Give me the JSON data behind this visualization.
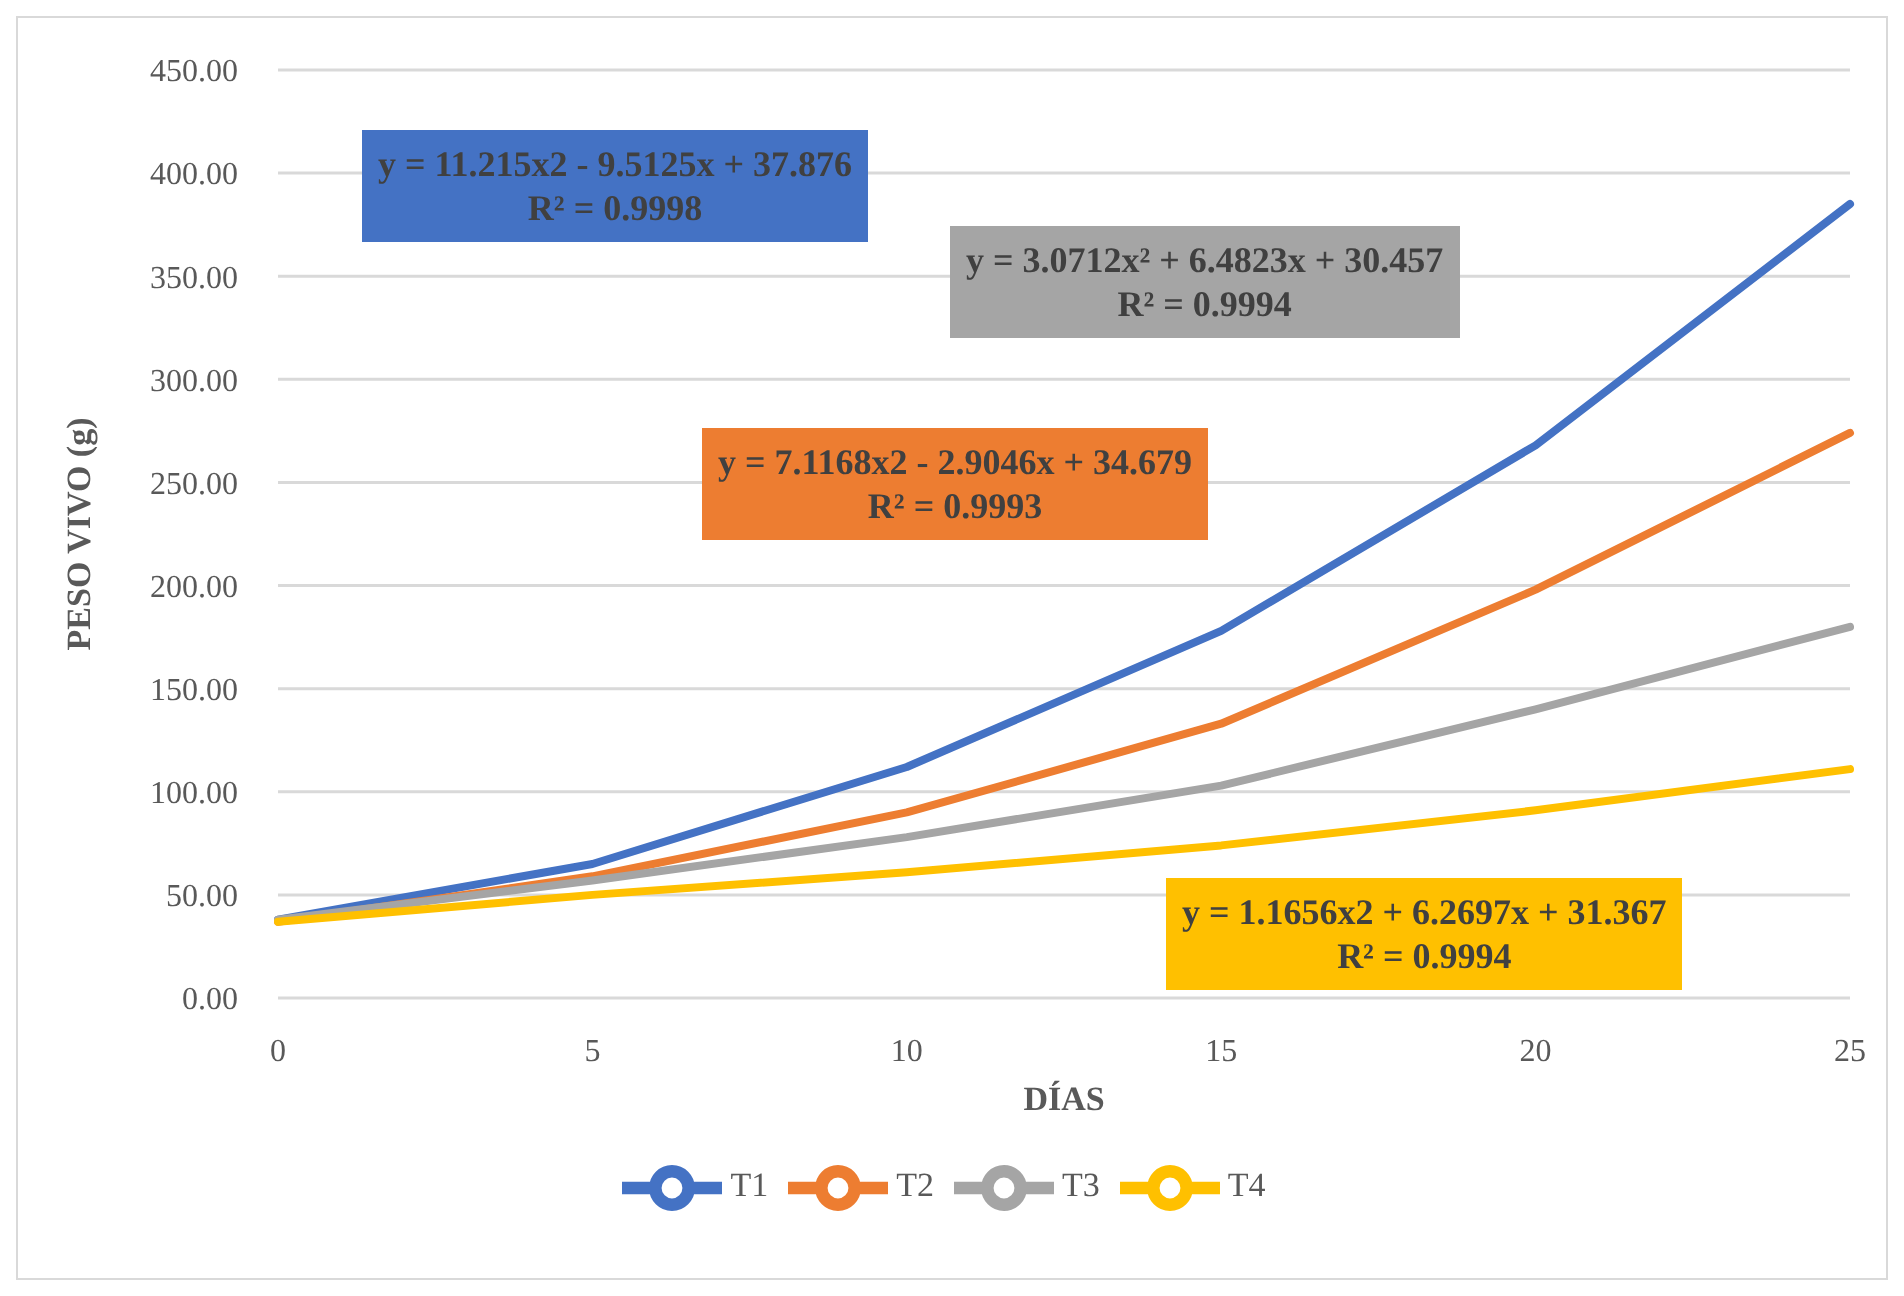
{
  "chart_data": {
    "type": "line",
    "xlabel": "DÍAS",
    "ylabel": "PESO VIVO (g)",
    "categories": [
      "0",
      "5",
      "10",
      "15",
      "20",
      "25"
    ],
    "series": [
      {
        "name": "T1",
        "color": "#4472c4",
        "values": [
          38,
          65,
          112,
          178,
          268,
          385
        ]
      },
      {
        "name": "T2",
        "color": "#ed7d31",
        "values": [
          37,
          59,
          90,
          133,
          198,
          274
        ]
      },
      {
        "name": "T3",
        "color": "#a5a5a5",
        "values": [
          38,
          57,
          78,
          103,
          140,
          180
        ]
      },
      {
        "name": "T4",
        "color": "#ffc000",
        "values": [
          37,
          50,
          61,
          74,
          91,
          111
        ]
      }
    ],
    "ylim": [
      0,
      450
    ],
    "yticks": [
      {
        "value": 0,
        "label": "0.00"
      },
      {
        "value": 50,
        "label": "50.00"
      },
      {
        "value": 100,
        "label": "100.00"
      },
      {
        "value": 150,
        "label": "150.00"
      },
      {
        "value": 200,
        "label": "200.00"
      },
      {
        "value": 250,
        "label": "250.00"
      },
      {
        "value": 300,
        "label": "300.00"
      },
      {
        "value": 350,
        "label": "350.00"
      },
      {
        "value": 400,
        "label": "400.00"
      },
      {
        "value": 450,
        "label": "450.00"
      }
    ],
    "grid": "y",
    "legend": "bottom",
    "marker": "none",
    "line_style": "solid",
    "annotations": [
      "y = 11.215x2 - 9.5125x + 37.876\nR² = 0.9998",
      "y = 7.1168x2 - 2.9046x + 34.679\nR² = 0.9993",
      "y = 3.0712x² + 6.4823x + 30.457\nR² = 0.9994",
      "y = 1.1656x2 + 6.2697x + 31.367\nR² = 0.9994"
    ]
  }
}
